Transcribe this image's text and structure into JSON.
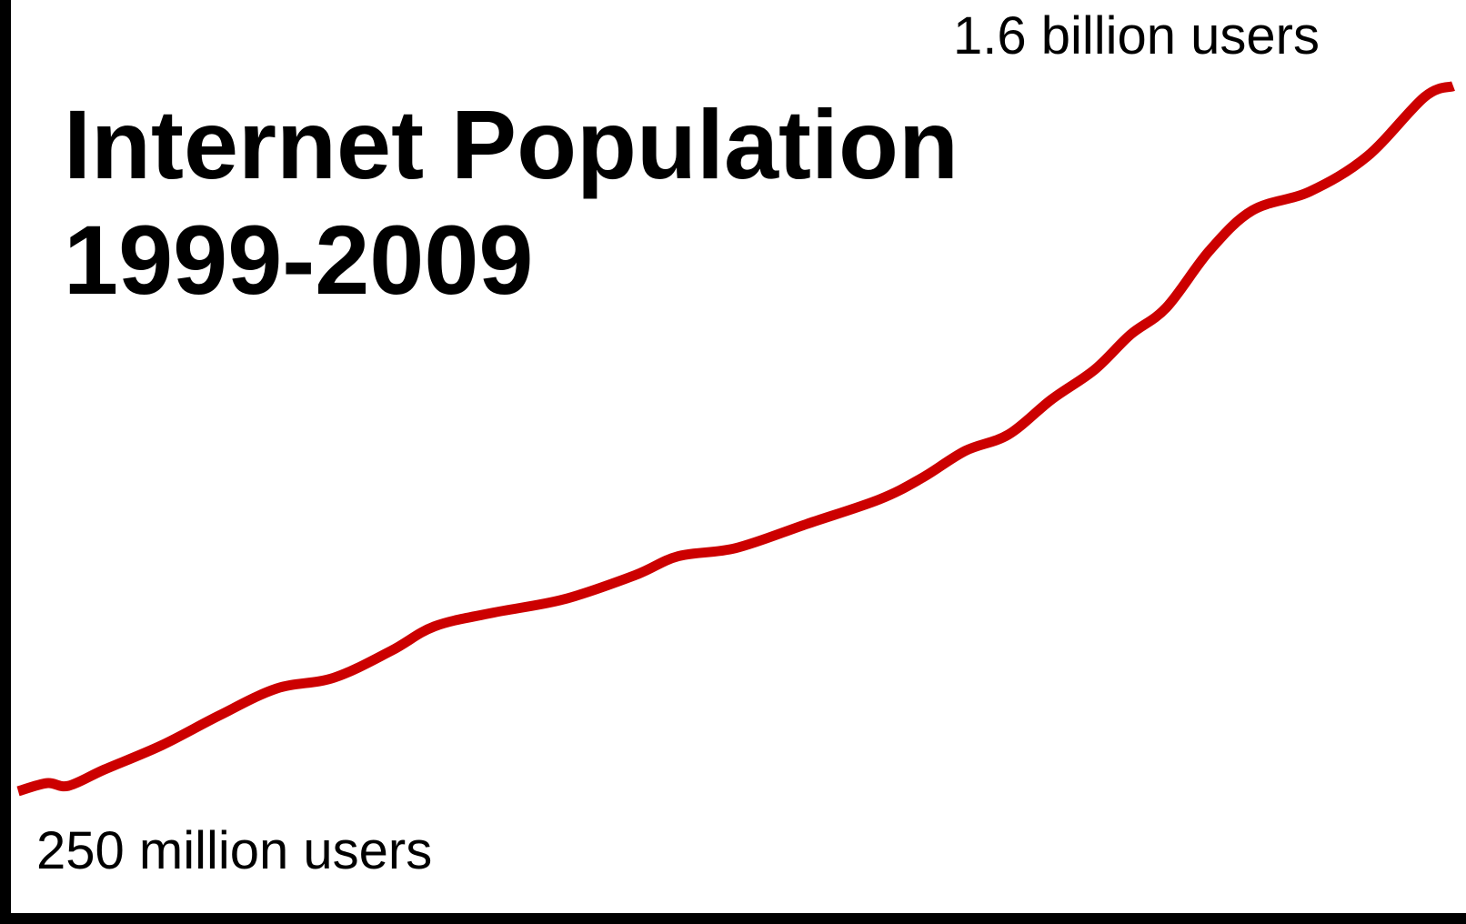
{
  "chart_data": {
    "type": "line",
    "title_lines": [
      "Internet Population",
      "1999-2009"
    ],
    "xlabel": "",
    "ylabel": "",
    "grid": false,
    "legend": "none",
    "xlim": [
      1999,
      2009
    ],
    "ylim": [
      250,
      1600
    ],
    "series": [
      {
        "color": "#cc0000",
        "x": [
          1999.0,
          1999.2,
          1999.35,
          1999.6,
          2000.0,
          2000.4,
          2000.8,
          2001.2,
          2001.6,
          2001.9,
          2002.3,
          2002.8,
          2003.3,
          2003.6,
          2004.0,
          2004.5,
          2005.0,
          2005.3,
          2005.6,
          2005.9,
          2006.2,
          2006.5,
          2006.75,
          2007.0,
          2007.3,
          2007.6,
          2008.0,
          2008.4,
          2008.8,
          2009.0
        ],
        "values": [
          250,
          265,
          260,
          290,
          335,
          390,
          440,
          460,
          510,
          555,
          580,
          605,
          650,
          685,
          700,
          745,
          790,
          830,
          880,
          910,
          975,
          1030,
          1095,
          1145,
          1250,
          1325,
          1360,
          1425,
          1535,
          1555
        ]
      }
    ],
    "annotations": {
      "start_label": "250 million users",
      "end_label": "1.6 billion users"
    }
  },
  "colors": {
    "series": "#cc0000",
    "axes": "#000000",
    "background": "#ffffff"
  }
}
